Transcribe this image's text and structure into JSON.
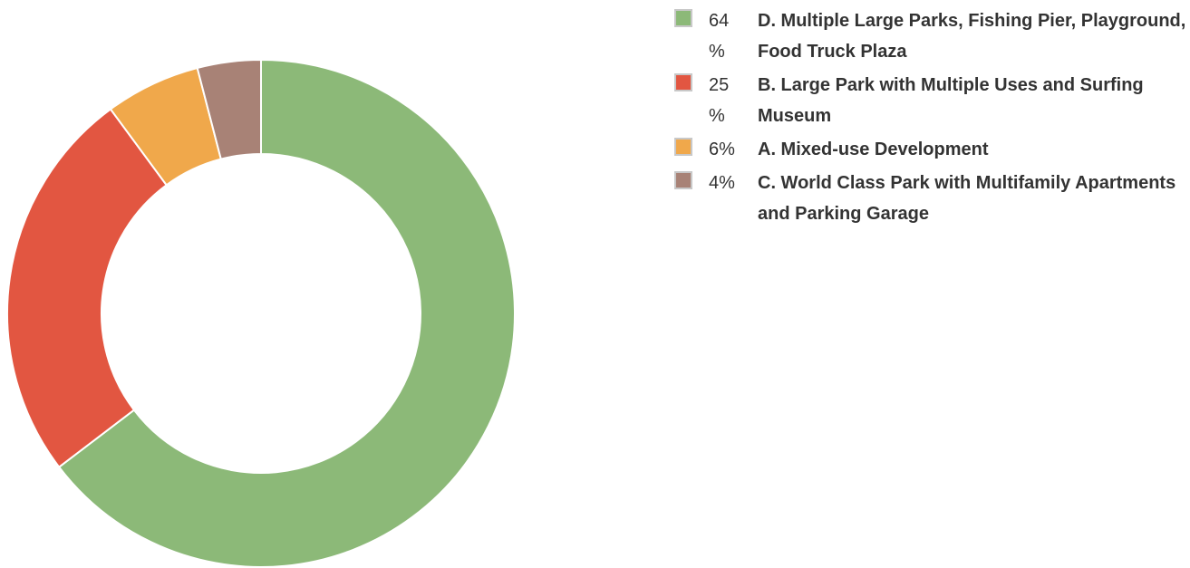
{
  "chart_data": {
    "type": "pie",
    "donut": true,
    "legend_position": "right",
    "slices": [
      {
        "label": "D. Multiple Large Parks, Fishing Pier, Playground, Food Truck Plaza",
        "value": 64,
        "display": "64 %",
        "color": "#8cb978"
      },
      {
        "label": "B. Large Park with Multiple Uses and Surfing Museum",
        "value": 25,
        "display": "25 %",
        "color": "#e25641"
      },
      {
        "label": "A. Mixed-use Development",
        "value": 6,
        "display": "6%",
        "color": "#f0a84b"
      },
      {
        "label": "C. World Class Park with Multifamily Apartments and Parking Garage",
        "value": 4,
        "display": "4%",
        "color": "#a88276"
      }
    ]
  }
}
